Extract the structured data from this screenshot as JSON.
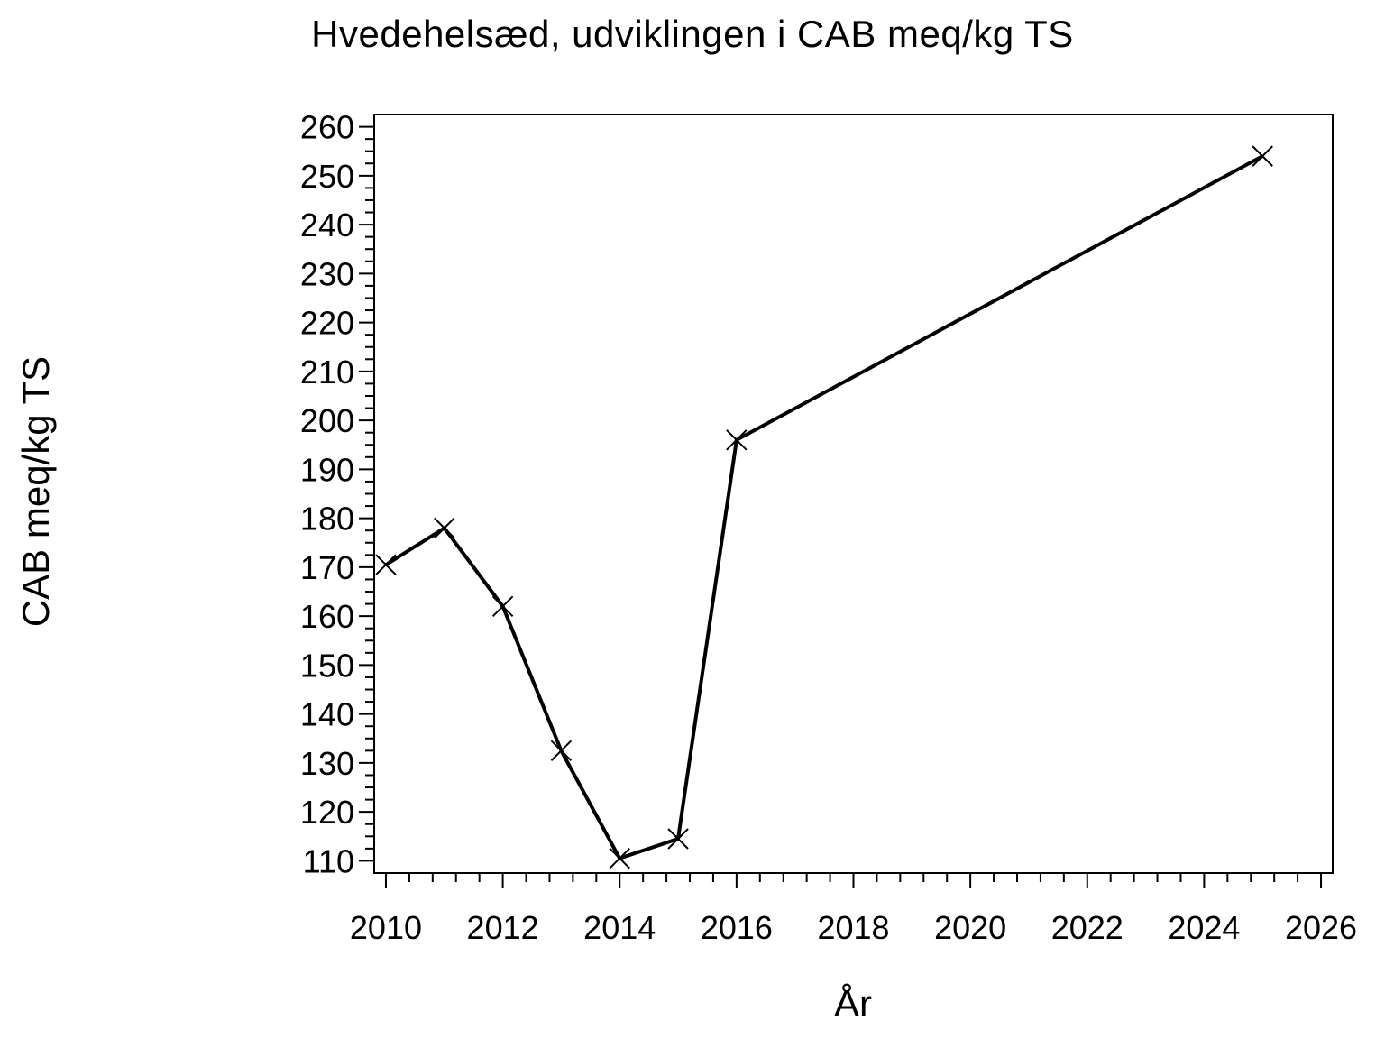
{
  "page": {
    "background": "#ffffff",
    "foreground": "#000000"
  },
  "chart_data": {
    "type": "line",
    "title": "Hvedehelsæd, udviklingen i CAB meq/kg TS",
    "xlabel": "År",
    "ylabel": "CAB meq/kg TS",
    "grid": false,
    "legend": false,
    "marker": "x",
    "line_color": "#000000",
    "background": "#ffffff",
    "series": [
      {
        "name": "CAB meq/kg TS",
        "x": [
          2010,
          2011,
          2012,
          2013,
          2014,
          2015,
          2016,
          2025
        ],
        "y": [
          170.5,
          178,
          162,
          132.5,
          110.5,
          114.5,
          196,
          254
        ]
      }
    ],
    "x_axis": {
      "min": 2009.8,
      "max": 2026.2,
      "tick_min": 2010,
      "tick_max": 2026,
      "major_step": 2,
      "minor_step": 0.4,
      "tick_labels": [
        "2010",
        "2012",
        "2014",
        "2016",
        "2018",
        "2020",
        "2022",
        "2024",
        "2026"
      ]
    },
    "y_axis": {
      "min": 107.5,
      "max": 262.5,
      "tick_min": 110,
      "tick_max": 260,
      "major_step": 10,
      "minor_step": 2.5,
      "tick_labels": [
        "110",
        "120",
        "130",
        "140",
        "150",
        "160",
        "170",
        "180",
        "190",
        "200",
        "210",
        "220",
        "230",
        "240",
        "250",
        "260"
      ]
    }
  }
}
